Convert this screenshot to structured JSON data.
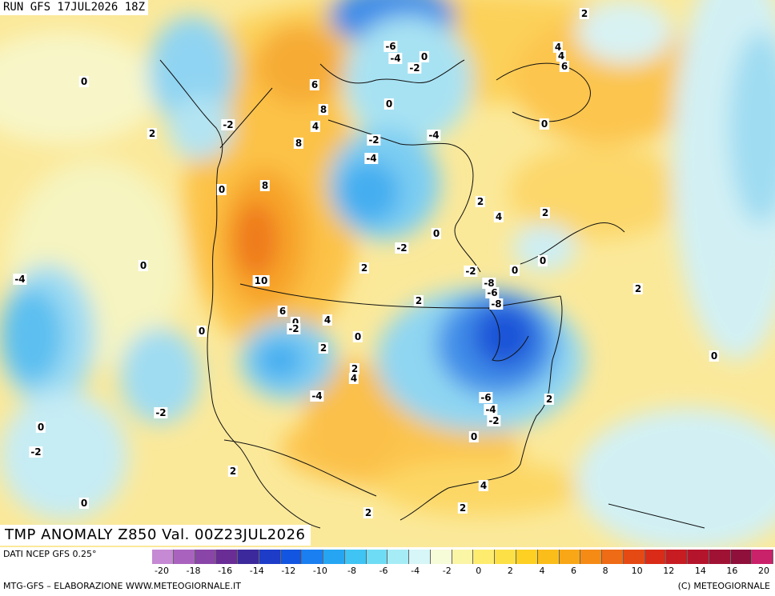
{
  "header": {
    "run_label": "RUN GFS 17JUL2026 18Z"
  },
  "map_title": "TMP ANOMALY Z850 Val. 00Z23JUL2026",
  "footer": {
    "data_source": "DATI NCEP GFS 0.25°",
    "processing": "MTG-GFS – ELABORAZIONE WWW.METEOGIORNALE.IT",
    "copyright": "(C) METEOGIORNALE"
  },
  "colorbar": {
    "ticks": [
      "-20",
      "-18",
      "-16",
      "-14",
      "-12",
      "-10",
      "-8",
      "-6",
      "-4",
      "-2",
      "0",
      "2",
      "4",
      "6",
      "8",
      "10",
      "12",
      "14",
      "16",
      "20"
    ],
    "colors": [
      "#c58ad3",
      "#a963bf",
      "#8a45a8",
      "#6a2d96",
      "#3c2a9c",
      "#1d3cc8",
      "#1255e0",
      "#1a7ff0",
      "#26a6f2",
      "#3fc4f4",
      "#6fdcf5",
      "#a6ecf7",
      "#d6f6f8",
      "#f6fbd8",
      "#fbf5a6",
      "#fdec6e",
      "#fde045",
      "#fdd023",
      "#fbbd1a",
      "#f9a617",
      "#f58b15",
      "#ef6b15",
      "#e54a14",
      "#d92b18",
      "#c61c22",
      "#b4152c",
      "#a01234",
      "#8f103a",
      "#c9216a"
    ]
  },
  "map_labels": [
    "0",
    "2",
    "-2",
    "-4",
    "-6",
    "-8",
    "4",
    "6",
    "8",
    "10"
  ]
}
